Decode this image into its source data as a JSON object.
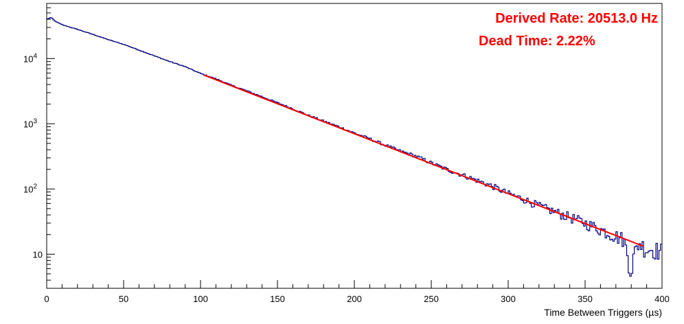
{
  "chart_data": {
    "type": "line",
    "title": "",
    "xlabel": "Time Between Triggers (µs)",
    "ylabel": "",
    "xlim": [
      0,
      400
    ],
    "ylim": [
      3,
      70000
    ],
    "y_scale": "log",
    "grid": false,
    "legend": "none",
    "x_ticks": [
      "0",
      "50",
      "100",
      "150",
      "200",
      "250",
      "300",
      "350",
      "400"
    ],
    "y_ticks": [
      {
        "base": "10",
        "exp": ""
      },
      {
        "base": "10",
        "exp": "2"
      },
      {
        "base": "10",
        "exp": "3"
      },
      {
        "base": "10",
        "exp": "4"
      }
    ],
    "annotations": [
      {
        "text": "Derived Rate: 20513.0 Hz",
        "color": "#ff0000"
      },
      {
        "text": "Dead Time: 2.22%",
        "color": "#ff0000"
      }
    ],
    "series": [
      {
        "kind": "histogram",
        "color": "#000080",
        "bin_width": 1,
        "x": [
          0,
          2,
          3,
          5,
          10,
          20,
          30,
          40,
          50,
          60,
          70,
          80,
          90,
          100,
          110,
          120,
          130,
          140,
          150,
          160,
          170,
          180,
          190,
          200,
          210,
          220,
          230,
          240,
          250,
          260,
          270,
          280,
          290,
          300,
          310,
          320,
          330,
          340,
          350,
          360,
          370,
          375,
          380,
          382,
          385,
          390,
          395,
          400
        ],
        "values": [
          40000,
          42000,
          42500,
          38000,
          33000,
          28000,
          23500,
          19500,
          16500,
          13500,
          11000,
          9000,
          7500,
          5900,
          4900,
          3900,
          3200,
          2600,
          2100,
          1700,
          1350,
          1100,
          900,
          720,
          590,
          470,
          380,
          320,
          250,
          200,
          165,
          135,
          110,
          85,
          70,
          55,
          45,
          37,
          30,
          24,
          19,
          17,
          6,
          10,
          15,
          12,
          12,
          11
        ]
      },
      {
        "kind": "fit",
        "color": "#ff0000",
        "x": [
          102,
          388
        ],
        "values": [
          5600,
          13.2
        ]
      }
    ]
  }
}
